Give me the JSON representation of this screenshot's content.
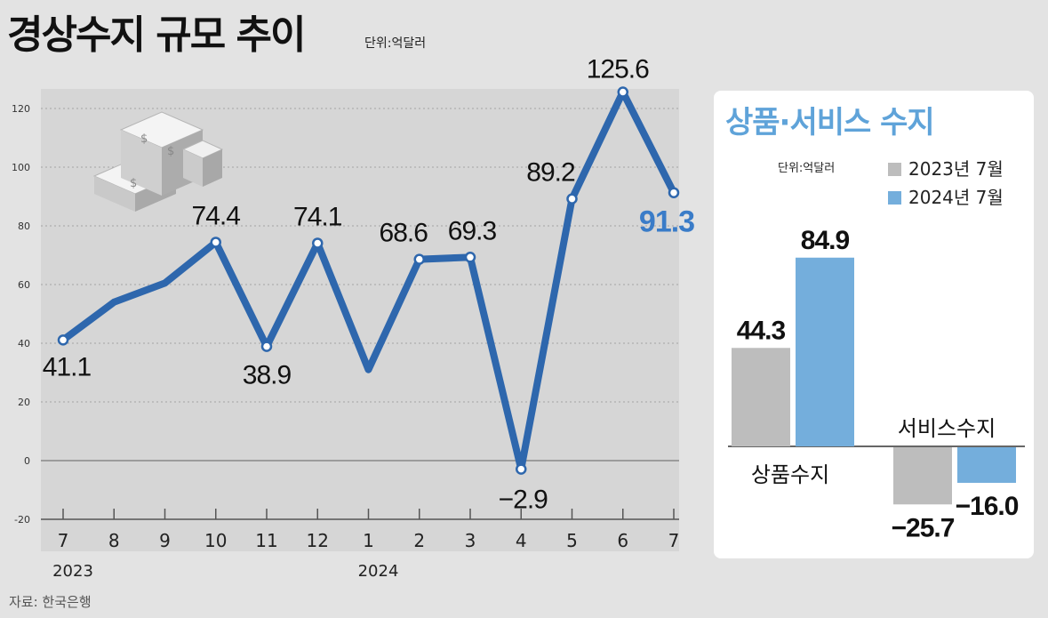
{
  "header": {
    "title": "경상수지 규모 추이",
    "unit": "단위:억달러"
  },
  "source": "자료: 한국은행",
  "colors": {
    "line": "#2e67ad",
    "highlight_label": "#3a7cc8",
    "bar_2023": "#bdbdbd",
    "bar_2024": "#74aedc",
    "panel_title": "#5fa3d9"
  },
  "chart_data": [
    {
      "type": "line",
      "title": "경상수지 규모 추이",
      "unit": "단위:억달러",
      "x": [
        "7",
        "8",
        "9",
        "10",
        "11",
        "12",
        "1",
        "2",
        "3",
        "4",
        "5",
        "6",
        "7"
      ],
      "year_labels": [
        {
          "label": "2023",
          "at_index": 0
        },
        {
          "label": "2024",
          "at_index": 6
        }
      ],
      "values": [
        41.1,
        54,
        60.5,
        74.4,
        38.9,
        74.1,
        31,
        68.6,
        69.3,
        -2.9,
        89.2,
        125.6,
        91.3
      ],
      "data_labels": [
        {
          "index": 0,
          "text": "41.1"
        },
        {
          "index": 3,
          "text": "74.4"
        },
        {
          "index": 4,
          "text": "38.9"
        },
        {
          "index": 5,
          "text": "74.1"
        },
        {
          "index": 7,
          "text": "68.6"
        },
        {
          "index": 8,
          "text": "69.3"
        },
        {
          "index": 9,
          "text": "−2.9"
        },
        {
          "index": 10,
          "text": "89.2"
        },
        {
          "index": 11,
          "text": "125.6"
        },
        {
          "index": 12,
          "text": "91.3",
          "highlight": true
        }
      ],
      "ylim": [
        -20,
        120
      ],
      "yticks": [
        -20,
        0,
        20,
        40,
        60,
        80,
        100,
        120
      ],
      "grid": true
    },
    {
      "type": "bar",
      "title": "상품·서비스 수지",
      "unit": "단위:억달러",
      "categories": [
        "상품수지",
        "서비스수지"
      ],
      "series": [
        {
          "name": "2023년 7월",
          "values": [
            44.3,
            -25.7
          ],
          "labels": [
            "44.3",
            "−25.7"
          ]
        },
        {
          "name": "2024년 7월",
          "values": [
            84.9,
            -16.0
          ],
          "labels": [
            "84.9",
            "−16.0"
          ]
        }
      ],
      "legend": "top-right"
    }
  ]
}
